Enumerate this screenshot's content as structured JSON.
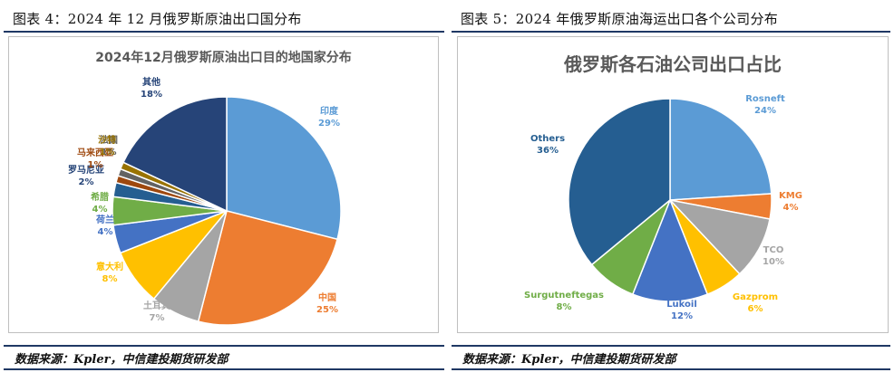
{
  "left": {
    "figure_title": "图表 4：2024 年 12 月俄罗斯原油出口国分布",
    "source": "数据来源：Kpler，中信建投期货研发部"
  },
  "right": {
    "figure_title": "图表 5：2024 年俄罗斯原油海运出口各个公司分布",
    "source": "数据来源：Kpler，中信建投期货研发部"
  },
  "chart_data": [
    {
      "type": "pie",
      "title": "2024年12月俄罗斯原油出口目的地国家分布",
      "slices": [
        {
          "label": "印度",
          "value": 29,
          "value_label": "29%",
          "color": "#5b9bd5"
        },
        {
          "label": "中国",
          "value": 25,
          "value_label": "25%",
          "color": "#ed7d31"
        },
        {
          "label": "土耳其",
          "value": 7,
          "value_label": "7%",
          "color": "#a5a5a5"
        },
        {
          "label": "意大利",
          "value": 8,
          "value_label": "8%",
          "color": "#ffc000"
        },
        {
          "label": "荷兰",
          "value": 4,
          "value_label": "4%",
          "color": "#4472c4"
        },
        {
          "label": "希腊",
          "value": 4,
          "value_label": "4%",
          "color": "#70ad47"
        },
        {
          "label": "罗马尼亚",
          "value": 2,
          "value_label": "2%",
          "color": "#255e91"
        },
        {
          "label": "马来西亚",
          "value": 1,
          "value_label": "1%",
          "color": "#9e480e"
        },
        {
          "label": "法国",
          "value": 1,
          "value_label": "1%",
          "color": "#636363"
        },
        {
          "label": "沙特",
          "value": 1,
          "value_label": "1%",
          "color": "#997300"
        },
        {
          "label": "其他",
          "value": 18,
          "value_label": "18%",
          "color": "#264478"
        }
      ]
    },
    {
      "type": "pie",
      "title": "俄罗斯各石油公司出口占比",
      "slices": [
        {
          "label": "Rosneft",
          "value": 24,
          "value_label": "24%",
          "color": "#5b9bd5"
        },
        {
          "label": "KMG",
          "value": 4,
          "value_label": "4%",
          "color": "#ed7d31"
        },
        {
          "label": "TCO",
          "value": 10,
          "value_label": "10%",
          "color": "#a5a5a5"
        },
        {
          "label": "Gazprom",
          "value": 6,
          "value_label": "6%",
          "color": "#ffc000"
        },
        {
          "label": "Lukoil",
          "value": 12,
          "value_label": "12%",
          "color": "#4472c4"
        },
        {
          "label": "Surgutneftegas",
          "value": 8,
          "value_label": "8%",
          "color": "#70ad47"
        },
        {
          "label": "Others",
          "value": 36,
          "value_label": "36%",
          "color": "#255e91"
        }
      ]
    }
  ]
}
